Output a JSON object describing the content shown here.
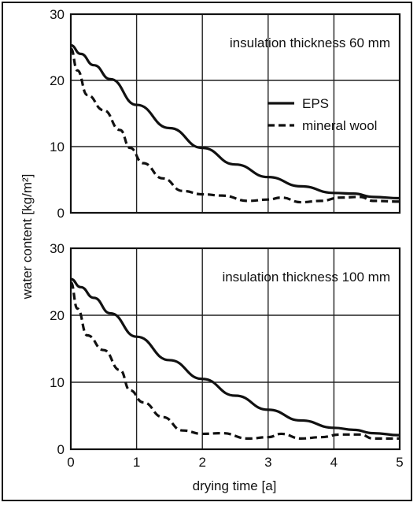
{
  "chart_data": [
    {
      "type": "line",
      "panel_label": "insulation thickness 60 mm",
      "xlabel": "",
      "ylabel": "water content [kg/m²]",
      "xlim": [
        0,
        5
      ],
      "ylim": [
        0,
        30
      ],
      "x_ticks": [
        "0",
        "1",
        "2",
        "3",
        "4",
        "5"
      ],
      "y_ticks": [
        "0",
        "10",
        "20",
        "30"
      ],
      "grid": true,
      "legend": "right-middle",
      "series": [
        {
          "name": "EPS",
          "style": "solid",
          "points": [
            [
              0,
              25.3
            ],
            [
              0.15,
              24.0
            ],
            [
              0.35,
              22.3
            ],
            [
              0.6,
              20.2
            ],
            [
              1.0,
              16.3
            ],
            [
              1.5,
              12.8
            ],
            [
              2.0,
              9.8
            ],
            [
              2.5,
              7.3
            ],
            [
              3.0,
              5.4
            ],
            [
              3.5,
              4.0
            ],
            [
              4.0,
              3.0
            ],
            [
              4.3,
              2.9
            ],
            [
              4.6,
              2.4
            ],
            [
              5.0,
              2.2
            ]
          ]
        },
        {
          "name": "mineral wool",
          "style": "dashed",
          "points": [
            [
              0,
              24.8
            ],
            [
              0.1,
              21.5
            ],
            [
              0.25,
              17.8
            ],
            [
              0.5,
              15.5
            ],
            [
              0.75,
              12.5
            ],
            [
              0.9,
              9.8
            ],
            [
              1.1,
              7.5
            ],
            [
              1.4,
              5.2
            ],
            [
              1.7,
              3.3
            ],
            [
              2.0,
              2.8
            ],
            [
              2.3,
              2.6
            ],
            [
              2.7,
              1.8
            ],
            [
              3.0,
              2.0
            ],
            [
              3.2,
              2.3
            ],
            [
              3.5,
              1.6
            ],
            [
              3.8,
              1.8
            ],
            [
              4.1,
              2.3
            ],
            [
              4.4,
              2.4
            ],
            [
              4.6,
              1.8
            ],
            [
              5.0,
              1.7
            ]
          ]
        }
      ]
    },
    {
      "type": "line",
      "panel_label": "insulation thickness 100 mm",
      "xlabel": "drying time [a]",
      "ylabel": "water content [kg/m²]",
      "xlim": [
        0,
        5
      ],
      "ylim": [
        0,
        30
      ],
      "x_ticks": [
        "0",
        "1",
        "2",
        "3",
        "4",
        "5"
      ],
      "y_ticks": [
        "0",
        "10",
        "20",
        "30"
      ],
      "grid": true,
      "series": [
        {
          "name": "EPS",
          "style": "solid",
          "points": [
            [
              0,
              25.4
            ],
            [
              0.15,
              24.2
            ],
            [
              0.35,
              22.6
            ],
            [
              0.6,
              20.3
            ],
            [
              1.0,
              16.8
            ],
            [
              1.5,
              13.3
            ],
            [
              2.0,
              10.5
            ],
            [
              2.5,
              8.0
            ],
            [
              3.0,
              5.9
            ],
            [
              3.5,
              4.3
            ],
            [
              4.0,
              3.2
            ],
            [
              4.3,
              2.9
            ],
            [
              4.6,
              2.4
            ],
            [
              5.0,
              2.1
            ]
          ]
        },
        {
          "name": "mineral wool",
          "style": "dashed",
          "points": [
            [
              0,
              24.9
            ],
            [
              0.1,
              21.0
            ],
            [
              0.25,
              17.0
            ],
            [
              0.5,
              14.8
            ],
            [
              0.75,
              11.8
            ],
            [
              0.9,
              8.8
            ],
            [
              1.1,
              7.0
            ],
            [
              1.4,
              4.8
            ],
            [
              1.7,
              2.8
            ],
            [
              2.0,
              2.3
            ],
            [
              2.3,
              2.4
            ],
            [
              2.7,
              1.6
            ],
            [
              3.0,
              1.8
            ],
            [
              3.2,
              2.3
            ],
            [
              3.5,
              1.6
            ],
            [
              3.8,
              1.8
            ],
            [
              4.1,
              2.2
            ],
            [
              4.4,
              2.2
            ],
            [
              4.6,
              1.6
            ],
            [
              5.0,
              1.6
            ]
          ]
        }
      ]
    }
  ]
}
